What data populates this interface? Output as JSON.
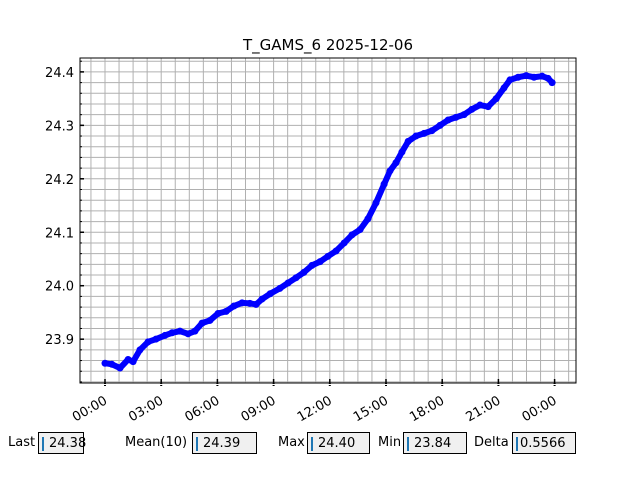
{
  "chart_data": {
    "type": "line",
    "title": "T_GAMS_6 2025-12-06",
    "xlabel": "",
    "ylabel": "",
    "x_tick_labels": [
      "00:00",
      "03:00",
      "06:00",
      "09:00",
      "12:00",
      "15:00",
      "18:00",
      "21:00",
      "00:00"
    ],
    "y_tick_labels": [
      "23.9",
      "24.0",
      "24.1",
      "24.2",
      "24.3",
      "24.4"
    ],
    "xlim": [
      "00:00",
      "24:00+"
    ],
    "ylim": [
      23.818,
      24.426
    ],
    "grid": true,
    "marker_color": "#0000ff",
    "series": [
      {
        "x": [
          "00:00",
          "00:22",
          "00:48",
          "01:14",
          "01:30",
          "01:52",
          "02:18",
          "02:43",
          "03:12",
          "03:35",
          "04:00",
          "04:26",
          "04:48",
          "05:11",
          "05:36",
          "06:02",
          "06:28",
          "06:53",
          "07:19",
          "07:44",
          "08:04",
          "08:23",
          "08:49",
          "09:20",
          "09:46",
          "10:12",
          "10:37",
          "11:03",
          "11:29",
          "11:54",
          "12:20",
          "12:46",
          "13:11",
          "13:37",
          "14:02",
          "14:28",
          "14:54",
          "15:13",
          "15:32",
          "15:51",
          "16:11",
          "16:36",
          "17:02",
          "17:27",
          "17:53",
          "18:19",
          "18:44",
          "19:10",
          "19:35",
          "20:01",
          "20:27",
          "20:53",
          "21:18",
          "21:37",
          "22:03",
          "22:29",
          "22:54",
          "23:20",
          "23:39",
          "23:52"
        ],
        "y": [
          23.855,
          23.853,
          23.846,
          23.862,
          23.858,
          23.88,
          23.895,
          23.9,
          23.907,
          23.912,
          23.915,
          23.91,
          23.915,
          23.93,
          23.935,
          23.948,
          23.952,
          23.962,
          23.968,
          23.967,
          23.965,
          23.975,
          23.985,
          23.995,
          24.005,
          24.015,
          24.025,
          24.038,
          24.045,
          24.055,
          24.065,
          24.08,
          24.095,
          24.105,
          24.125,
          24.155,
          24.19,
          24.215,
          24.23,
          24.25,
          24.27,
          24.28,
          24.285,
          24.29,
          24.3,
          24.31,
          24.315,
          24.32,
          24.33,
          24.338,
          24.335,
          24.35,
          24.37,
          24.385,
          24.39,
          24.393,
          24.39,
          24.392,
          24.388,
          24.38
        ]
      }
    ]
  },
  "stats": [
    {
      "label": "Last",
      "value": "24.38"
    },
    {
      "label": "Mean(10)",
      "value": "24.39"
    },
    {
      "label": "Max",
      "value": "24.40"
    },
    {
      "label": "Min",
      "value": "23.84"
    },
    {
      "label": "Delta",
      "value": "0.5566"
    }
  ]
}
